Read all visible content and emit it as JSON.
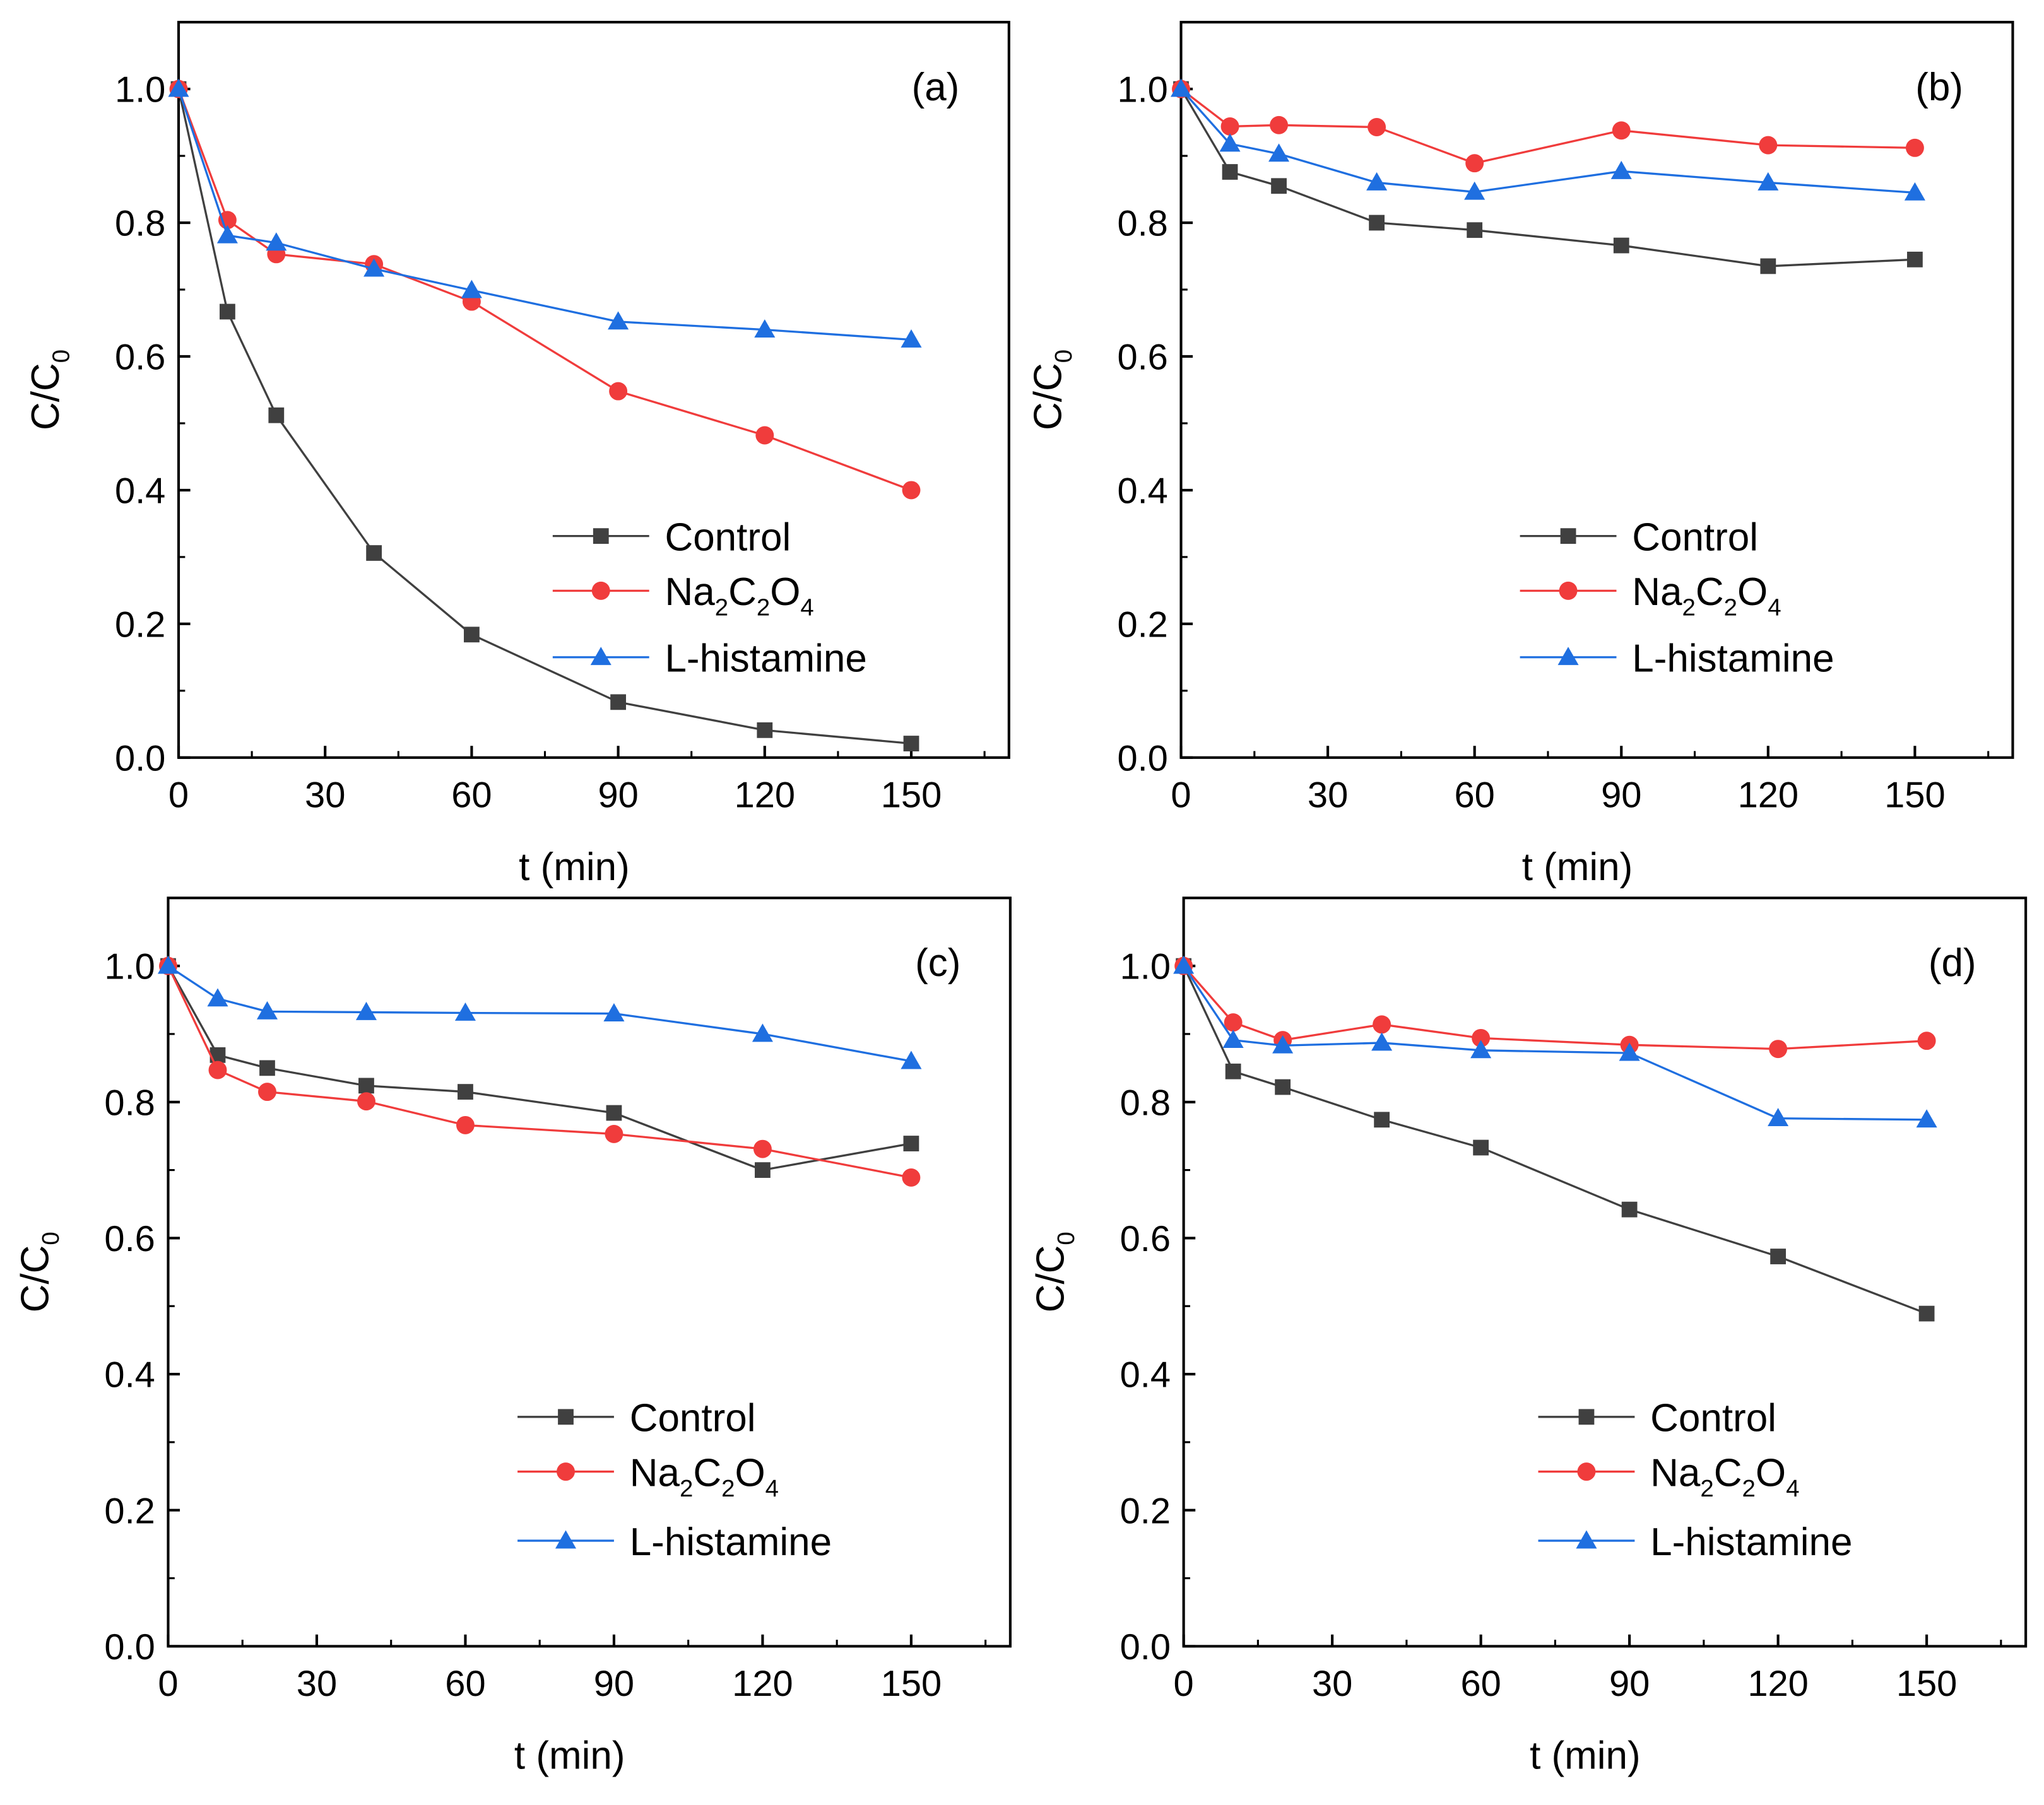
{
  "chart_data": [
    {
      "type": "line",
      "panel_label": "(a)",
      "xlabel": "t (min)",
      "ylabel": "C/C0",
      "xlim": [
        0,
        170
      ],
      "ylim": [
        0,
        1.1
      ],
      "xticks": [
        0,
        30,
        60,
        90,
        120,
        150
      ],
      "yticks": [
        0.0,
        0.2,
        0.4,
        0.6,
        0.8,
        1.0
      ],
      "legend_position": "bottom-right",
      "x": [
        0,
        10,
        20,
        40,
        60,
        90,
        120,
        150
      ],
      "series": [
        {
          "name": "Control",
          "color": "#404040",
          "marker": "square",
          "values": [
            1.0,
            0.667,
            0.512,
            0.306,
            0.184,
            0.083,
            0.041,
            0.021
          ]
        },
        {
          "name": "Na2C2O4",
          "color": "#f03c3c",
          "marker": "circle",
          "values": [
            1.0,
            0.804,
            0.753,
            0.738,
            0.682,
            0.548,
            0.482,
            0.4
          ]
        },
        {
          "name": "L-histamine",
          "color": "#1f6fe0",
          "marker": "triangle",
          "values": [
            1.0,
            0.781,
            0.77,
            0.731,
            0.699,
            0.652,
            0.64,
            0.625
          ]
        }
      ]
    },
    {
      "type": "line",
      "panel_label": "(b)",
      "xlabel": "t (min)",
      "ylabel": "C/C0",
      "xlim": [
        0,
        170
      ],
      "ylim": [
        0,
        1.1
      ],
      "xticks": [
        0,
        30,
        60,
        90,
        120,
        150
      ],
      "yticks": [
        0.0,
        0.2,
        0.4,
        0.6,
        0.8,
        1.0
      ],
      "legend_position": "bottom-right",
      "x": [
        0,
        10,
        20,
        40,
        60,
        90,
        120,
        150
      ],
      "series": [
        {
          "name": "Control",
          "color": "#404040",
          "marker": "square",
          "values": [
            1.0,
            0.876,
            0.855,
            0.8,
            0.789,
            0.766,
            0.735,
            0.745
          ]
        },
        {
          "name": "Na2C2O4",
          "color": "#f03c3c",
          "marker": "circle",
          "values": [
            1.0,
            0.944,
            0.946,
            0.943,
            0.889,
            0.938,
            0.916,
            0.912
          ]
        },
        {
          "name": "L-histamine",
          "color": "#1f6fe0",
          "marker": "triangle",
          "values": [
            1.0,
            0.918,
            0.903,
            0.86,
            0.846,
            0.877,
            0.86,
            0.845
          ]
        }
      ]
    },
    {
      "type": "line",
      "panel_label": "(c)",
      "xlabel": "t (min)",
      "ylabel": "C/C0",
      "xlim": [
        0,
        170
      ],
      "ylim": [
        0,
        1.1
      ],
      "xticks": [
        0,
        30,
        60,
        90,
        120,
        150
      ],
      "yticks": [
        0.0,
        0.2,
        0.4,
        0.6,
        0.8,
        1.0
      ],
      "legend_position": "bottom-right",
      "x": [
        0,
        10,
        20,
        40,
        60,
        90,
        120,
        150
      ],
      "series": [
        {
          "name": "Control",
          "color": "#404040",
          "marker": "square",
          "values": [
            1.0,
            0.869,
            0.85,
            0.824,
            0.815,
            0.784,
            0.7,
            0.739
          ]
        },
        {
          "name": "Na2C2O4",
          "color": "#f03c3c",
          "marker": "circle",
          "values": [
            1.0,
            0.847,
            0.815,
            0.801,
            0.766,
            0.753,
            0.731,
            0.689
          ]
        },
        {
          "name": "L-histamine",
          "color": "#1f6fe0",
          "marker": "triangle",
          "values": [
            1.0,
            0.952,
            0.933,
            0.932,
            0.931,
            0.93,
            0.9,
            0.86
          ]
        }
      ]
    },
    {
      "type": "line",
      "panel_label": "(d)",
      "xlabel": "t (min)",
      "ylabel": "C/C0",
      "xlim": [
        0,
        170
      ],
      "ylim": [
        0,
        1.1
      ],
      "xticks": [
        0,
        30,
        60,
        90,
        120,
        150
      ],
      "yticks": [
        0.0,
        0.2,
        0.4,
        0.6,
        0.8,
        1.0
      ],
      "legend_position": "bottom-right",
      "x": [
        0,
        10,
        20,
        40,
        60,
        90,
        120,
        150
      ],
      "series": [
        {
          "name": "Control",
          "color": "#404040",
          "marker": "square",
          "values": [
            1.0,
            0.845,
            0.822,
            0.774,
            0.733,
            0.642,
            0.573,
            0.489
          ]
        },
        {
          "name": "Na2C2O4",
          "color": "#f03c3c",
          "marker": "circle",
          "values": [
            1.0,
            0.917,
            0.891,
            0.914,
            0.894,
            0.884,
            0.878,
            0.89
          ]
        },
        {
          "name": "L-histamine",
          "color": "#1f6fe0",
          "marker": "triangle",
          "values": [
            1.0,
            0.891,
            0.883,
            0.887,
            0.876,
            0.872,
            0.776,
            0.774
          ]
        }
      ]
    }
  ]
}
